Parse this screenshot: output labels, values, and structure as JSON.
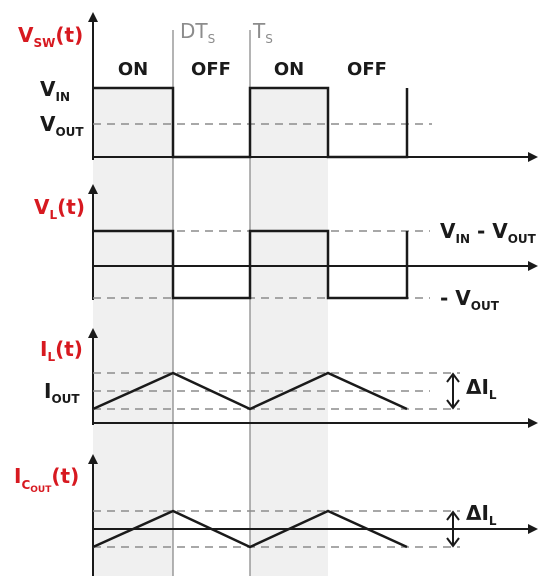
{
  "colors": {
    "signal_label": "#d71920",
    "trace": "#1a1a1a",
    "grid": "#8c8c8c",
    "shade": "#f0f0f0"
  },
  "time_markers": {
    "dt": {
      "main": "DT",
      "sub": "S"
    },
    "ts": {
      "main": "T",
      "sub": "S"
    }
  },
  "phases": [
    "ON",
    "OFF",
    "ON",
    "OFF"
  ],
  "v_sw": {
    "label": {
      "main": "V",
      "sub": "SW",
      "tail": "(t)"
    },
    "v_in": {
      "main": "V",
      "sub": "IN"
    },
    "v_out": {
      "main": "V",
      "sub": "OUT"
    }
  },
  "v_l": {
    "label": {
      "main": "V",
      "sub": "L",
      "tail": "(t)"
    },
    "upper": {
      "main": "V",
      "sub1": "IN",
      "mid": " - V",
      "sub2": "OUT"
    },
    "lower": {
      "main": "- V",
      "sub": "OUT"
    }
  },
  "i_l": {
    "label": {
      "main": "I",
      "sub": "L",
      "tail": "(t)"
    },
    "i_out": {
      "main": "I",
      "sub": "OUT"
    },
    "ripple": {
      "main": "ΔI",
      "sub": "L"
    }
  },
  "i_cout": {
    "label": {
      "main": "I",
      "sub": "C",
      "subsub": "OUT",
      "tail": "(t)"
    },
    "ripple": {
      "main": "ΔI",
      "sub": "L"
    }
  }
}
